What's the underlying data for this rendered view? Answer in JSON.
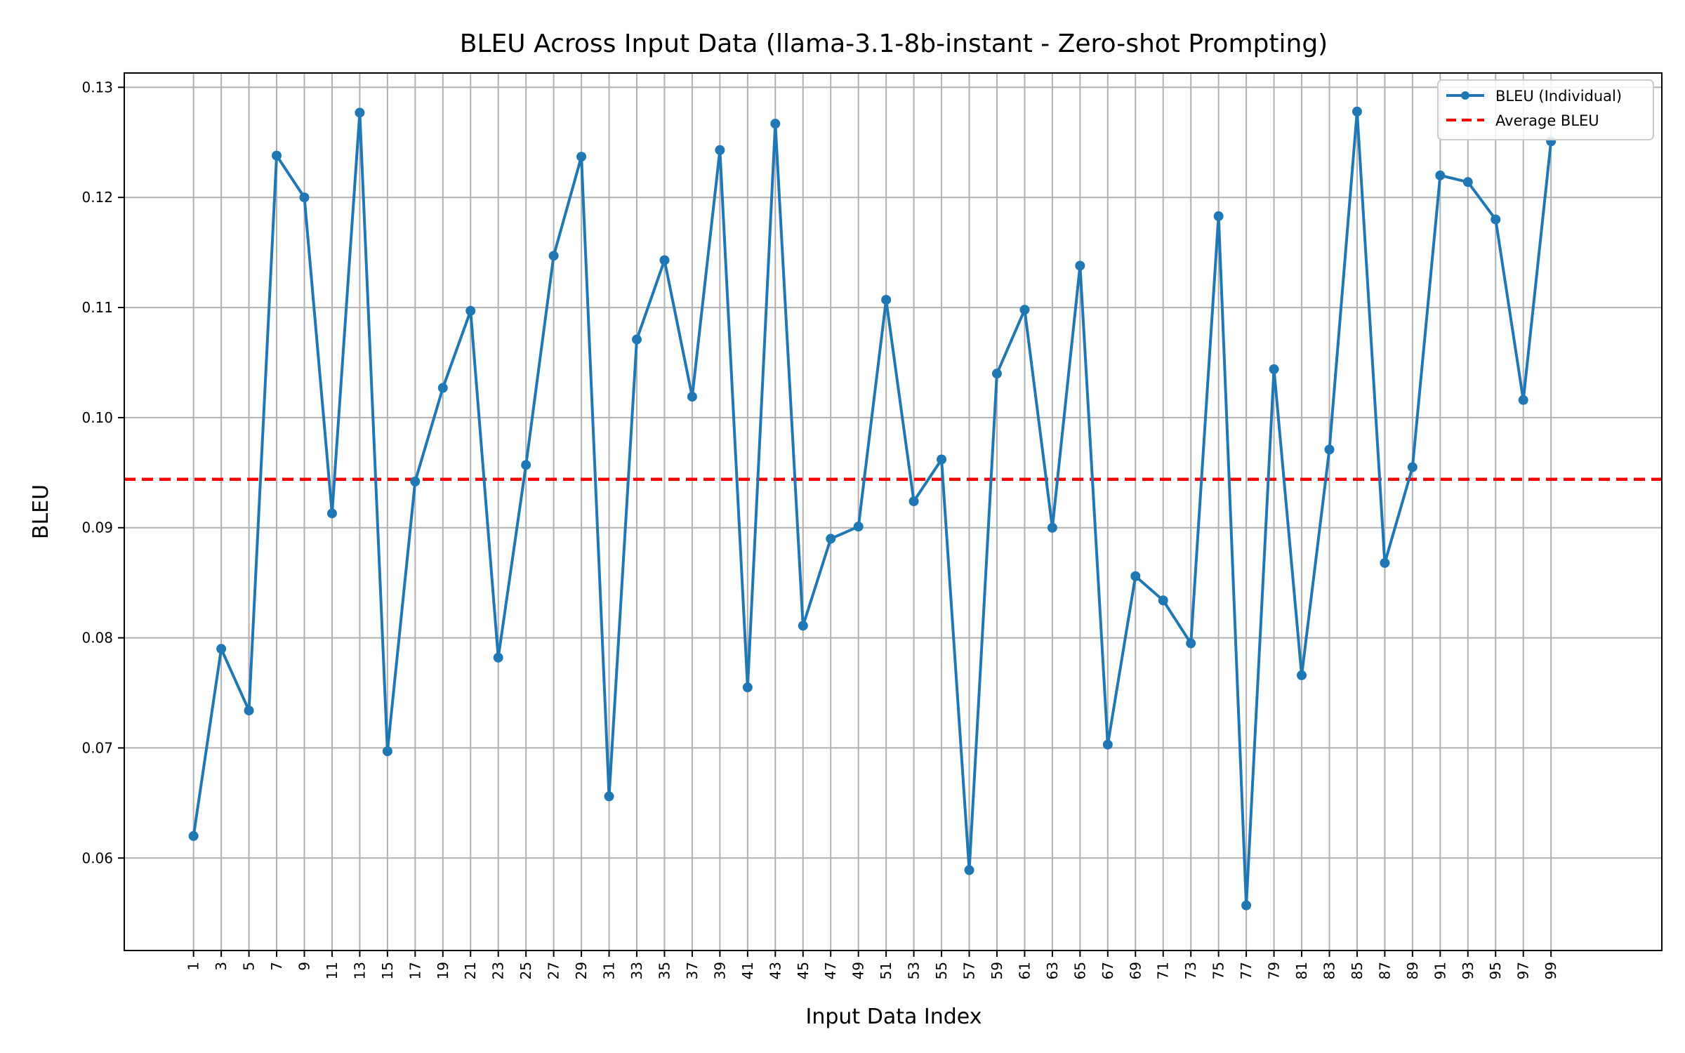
{
  "chart_data": {
    "type": "line",
    "title": "BLEU Across Input Data (llama-3.1-8b-instant - Zero-shot Prompting)",
    "xlabel": "Input Data Index",
    "ylabel": "BLEU",
    "x": [
      1,
      3,
      5,
      7,
      9,
      11,
      13,
      15,
      17,
      19,
      21,
      23,
      25,
      27,
      29,
      31,
      33,
      35,
      37,
      39,
      41,
      43,
      45,
      47,
      49,
      51,
      53,
      55,
      57,
      59,
      61,
      63,
      65,
      67,
      69,
      71,
      73,
      75,
      77,
      79,
      81,
      83,
      85,
      87,
      89,
      91,
      93,
      95,
      97,
      99
    ],
    "series": [
      {
        "name": "BLEU (Individual)",
        "color": "#1f77b4",
        "values": [
          0.062,
          0.079,
          0.0734,
          0.1238,
          0.12,
          0.0913,
          0.1277,
          0.0697,
          0.0942,
          0.1027,
          0.1097,
          0.0782,
          0.0957,
          0.1147,
          0.1237,
          0.0656,
          0.1071,
          0.1143,
          0.1019,
          0.1243,
          0.0755,
          0.1267,
          0.0811,
          0.089,
          0.0901,
          0.1107,
          0.0924,
          0.0962,
          0.0589,
          0.104,
          0.1098,
          0.09,
          0.1138,
          0.0703,
          0.0856,
          0.0834,
          0.0795,
          0.1183,
          0.0557,
          0.1044,
          0.0766,
          0.0971,
          0.1278,
          0.0868,
          0.0955,
          0.122,
          0.1214,
          0.118,
          0.1016,
          0.1251
        ]
      }
    ],
    "average": {
      "name": "Average BLEU",
      "value": 0.0944,
      "color": "#ff0000"
    },
    "xticks": [
      1,
      3,
      5,
      7,
      9,
      11,
      13,
      15,
      17,
      19,
      21,
      23,
      25,
      27,
      29,
      31,
      33,
      35,
      37,
      39,
      41,
      43,
      45,
      47,
      49,
      51,
      53,
      55,
      57,
      59,
      61,
      63,
      65,
      67,
      69,
      71,
      73,
      75,
      77,
      79,
      81,
      83,
      85,
      87,
      89,
      91,
      93,
      95,
      97,
      99
    ],
    "yticks": [
      0.06,
      0.07,
      0.08,
      0.09,
      0.1,
      0.11,
      0.12,
      0.13
    ],
    "ytick_labels": [
      "0.06",
      "0.07",
      "0.08",
      "0.09",
      "0.10",
      "0.11",
      "0.12",
      "0.13"
    ],
    "xlim": [
      -4,
      107
    ],
    "ylim": [
      0.0516,
      0.1313
    ],
    "grid": true,
    "legend_position": "top-right"
  }
}
